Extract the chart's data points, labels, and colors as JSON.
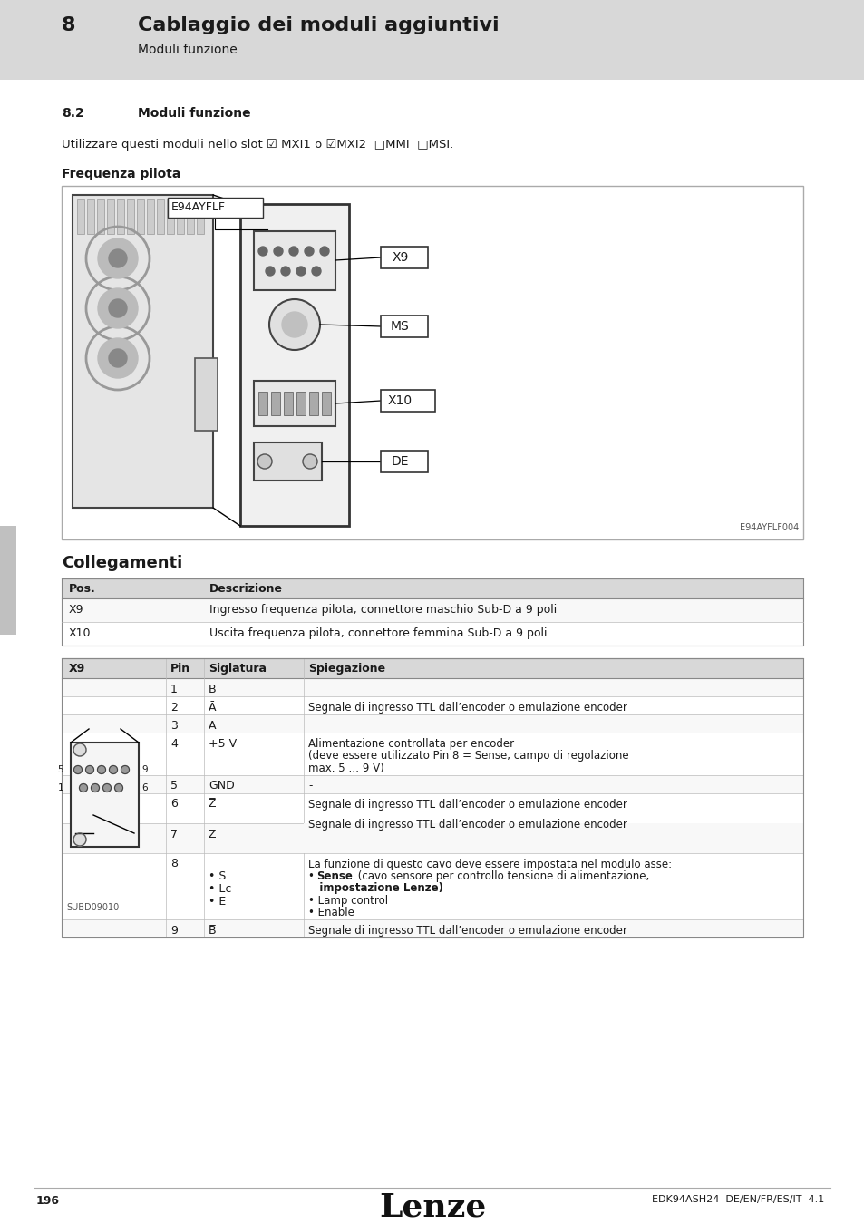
{
  "page_bg": "#ffffff",
  "header_bg": "#d8d8d8",
  "header_title": "Cablaggio dei moduli aggiuntivi",
  "header_subtitle": "Moduli funzione",
  "header_number": "8",
  "section_number": "8.2",
  "section_title": "Moduli funzione",
  "intro_text": "Utilizzare questi moduli nello slot ☑ MXI1 o ☑MXI2  □MMI  □MSI.",
  "freq_title": "Frequenza pilota",
  "connections_title": "Collegamenti",
  "table1_rows": [
    [
      "X9",
      "Ingresso frequenza pilota, connettore maschio Sub-D a 9 poli"
    ],
    [
      "X10",
      "Uscita frequenza pilota, connettore femmina Sub-D a 9 poli"
    ]
  ],
  "pin_data": [
    {
      "pin": "1",
      "sig": "B",
      "expl": "",
      "lines": 1
    },
    {
      "pin": "2",
      "sig": "Ā",
      "expl": "Segnale di ingresso TTL dall’encoder o emulazione encoder",
      "lines": 1
    },
    {
      "pin": "3",
      "sig": "A",
      "expl": "",
      "lines": 1
    },
    {
      "pin": "4",
      "sig": "+5 V",
      "expl": "Alimentazione controllata per encoder\n(deve essere utilizzato Pin 8 = Sense, campo di regolazione\nmax. 5 … 9 V)",
      "lines": 3
    },
    {
      "pin": "5",
      "sig": "GND",
      "expl": "-",
      "lines": 1
    },
    {
      "pin": "6",
      "sig": "Z̅",
      "expl": "Segnale di ingresso TTL dall’encoder o emulazione encoder",
      "lines": 2
    },
    {
      "pin": "7",
      "sig": "Z",
      "expl": "",
      "lines": 2
    },
    {
      "pin": "8",
      "sig": "",
      "expl": "La funzione di questo cavo deve essere impostata nel modulo asse:\n• ​Sense​ (cavo sensore per controllo tensione di alimentazione,\n   impostazione Lenze)\n• Lamp control\n• Enable",
      "lines": 5
    },
    {
      "pin": "9",
      "sig": "B̅",
      "expl": "Segnale di ingresso TTL dall’encoder o emulazione encoder",
      "lines": 1
    }
  ],
  "footer_page": "196",
  "footer_logo": "Lenze",
  "footer_right": "EDK94ASH24  DE/EN/FR/ES/IT  4.1",
  "image_label": "E94AYFLF",
  "image_caption": "E94AYFLF004",
  "connector_image": "SUBD09010"
}
